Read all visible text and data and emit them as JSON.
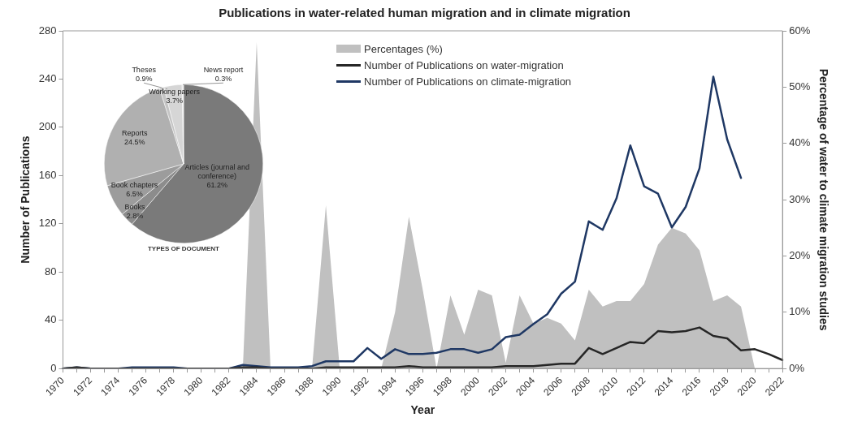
{
  "chart_data": [
    {
      "type": "line",
      "title": "Publications in water-related human migration and in climate migration",
      "xlabel": "Year",
      "ylabel": "Number of Publications",
      "y2label": "Percentage of water to climate migration studies",
      "categories": [
        "1970",
        null,
        "1972",
        null,
        "1974",
        null,
        "1976",
        null,
        "1978",
        null,
        "1980",
        null,
        "1982",
        null,
        "1984",
        null,
        "1986",
        null,
        "1988",
        null,
        "1990",
        null,
        "1992",
        null,
        "1994",
        null,
        "1996",
        null,
        "1998",
        null,
        "2000",
        null,
        "2002",
        null,
        "2004",
        null,
        "2006",
        null,
        "2008",
        null,
        "2010",
        null,
        "2012",
        null,
        "2014",
        null,
        "2016",
        null,
        "2018",
        null,
        "2020",
        null,
        "2022"
      ],
      "series": [
        {
          "name": "Percentages (%)",
          "type": "area",
          "axis": "y2",
          "color": "#c0c0c0",
          "values": [
            0,
            0,
            0,
            0,
            0,
            0,
            0,
            0,
            0,
            0,
            0,
            0,
            0,
            0,
            58,
            0,
            0,
            0,
            0,
            29,
            0,
            0,
            0,
            0,
            10,
            27,
            14,
            0,
            13,
            6,
            14,
            13,
            1,
            13,
            8,
            9,
            8,
            5,
            14,
            11,
            12,
            12,
            15,
            22,
            25,
            24,
            21,
            12,
            13,
            11,
            0,
            null,
            null
          ]
        },
        {
          "name": "Number of Publications on water-migration",
          "type": "line",
          "color": "#262626",
          "values": [
            0,
            1,
            0,
            0,
            0,
            0,
            0,
            0,
            0,
            0,
            0,
            0,
            0,
            1,
            1,
            0,
            0,
            0,
            0,
            1,
            1,
            1,
            1,
            1,
            1,
            2,
            1,
            1,
            1,
            1,
            1,
            1,
            2,
            2,
            2,
            3,
            4,
            4,
            17,
            12,
            17,
            22,
            21,
            31,
            30,
            31,
            34,
            27,
            25,
            15,
            16,
            12,
            7
          ]
        },
        {
          "name": "Number of Publications on climate-migration",
          "type": "line",
          "color": "#1f3864",
          "values": [
            0,
            1,
            0,
            0,
            0,
            1,
            1,
            1,
            1,
            0,
            0,
            0,
            0,
            3,
            2,
            1,
            1,
            1,
            2,
            6,
            6,
            6,
            17,
            8,
            16,
            12,
            12,
            13,
            16,
            16,
            13,
            16,
            26,
            28,
            37,
            45,
            62,
            72,
            122,
            115,
            141,
            185,
            151,
            145,
            117,
            134,
            166,
            242,
            190,
            158,
            null,
            null,
            null
          ]
        }
      ],
      "ylim": [
        0,
        280
      ],
      "yticks": [
        0,
        40,
        80,
        120,
        160,
        200,
        240,
        280
      ],
      "y2lim": [
        0,
        60
      ],
      "y2ticks": [
        {
          "value": 0,
          "label": "0%"
        },
        {
          "value": 10,
          "label": "10%"
        },
        {
          "value": 20,
          "label": "20%"
        },
        {
          "value": 30,
          "label": "30%"
        },
        {
          "value": 40,
          "label": "40%"
        },
        {
          "value": 50,
          "label": "50%"
        },
        {
          "value": 60,
          "label": "60%"
        }
      ],
      "legend": "top"
    },
    {
      "type": "pie",
      "title": "TYPES OF DOCUMENT",
      "categories": [
        "Articles (journal and conference)",
        "Books",
        "Book chapters",
        "Reports",
        "Theses",
        "Working papers",
        "News report"
      ],
      "values": [
        61.2,
        2.8,
        6.5,
        24.5,
        0.9,
        3.7,
        0.3
      ],
      "value_labels": [
        "61.2%",
        "2.8%",
        "6.5%",
        "24.5%",
        "0.9%",
        "3.7%",
        "0.3%"
      ],
      "colors": [
        "#7a7a7a",
        "#8c8c8c",
        "#9c9c9c",
        "#b0b0b0",
        "#c4c4c4",
        "#d6d6d6",
        "#e6e6e6"
      ]
    }
  ]
}
